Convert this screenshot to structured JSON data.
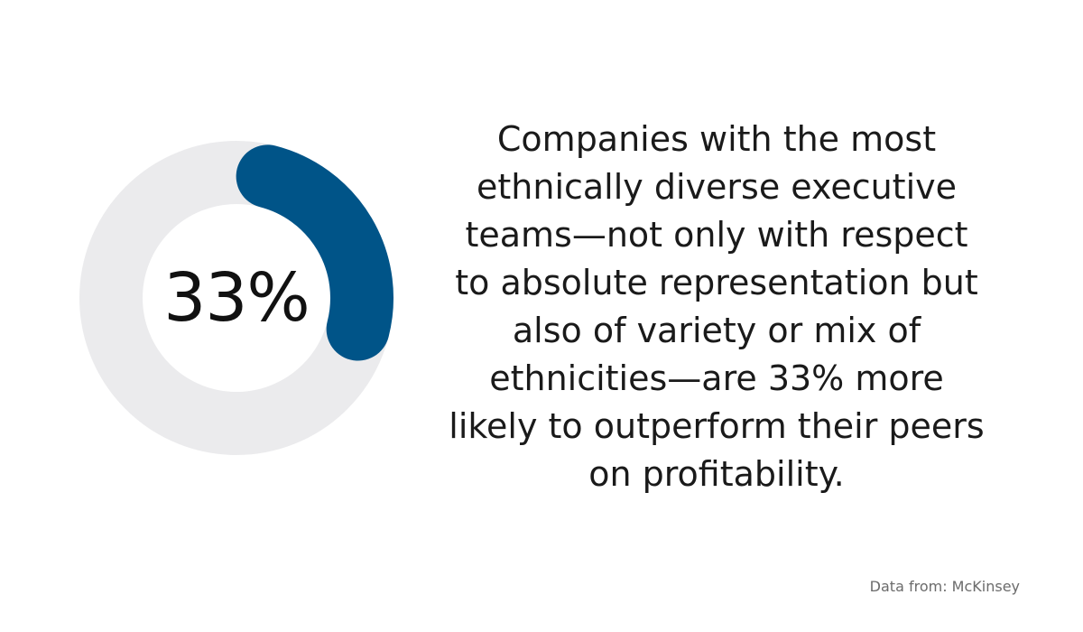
{
  "chart_data": {
    "type": "pie",
    "values": [
      33,
      67
    ],
    "center_label": "33%",
    "colors": {
      "highlight": "#005488",
      "track": "#ebebed"
    }
  },
  "statement": {
    "lines": [
      "Companies with the most",
      "ethnically diverse executive",
      "teams—not only with respect",
      "to absolute representation but",
      "also of variety or mix of",
      "ethnicities—are 33% more",
      "likely to outperform their peers",
      "on profitability."
    ]
  },
  "source": "Data from: McKinsey"
}
